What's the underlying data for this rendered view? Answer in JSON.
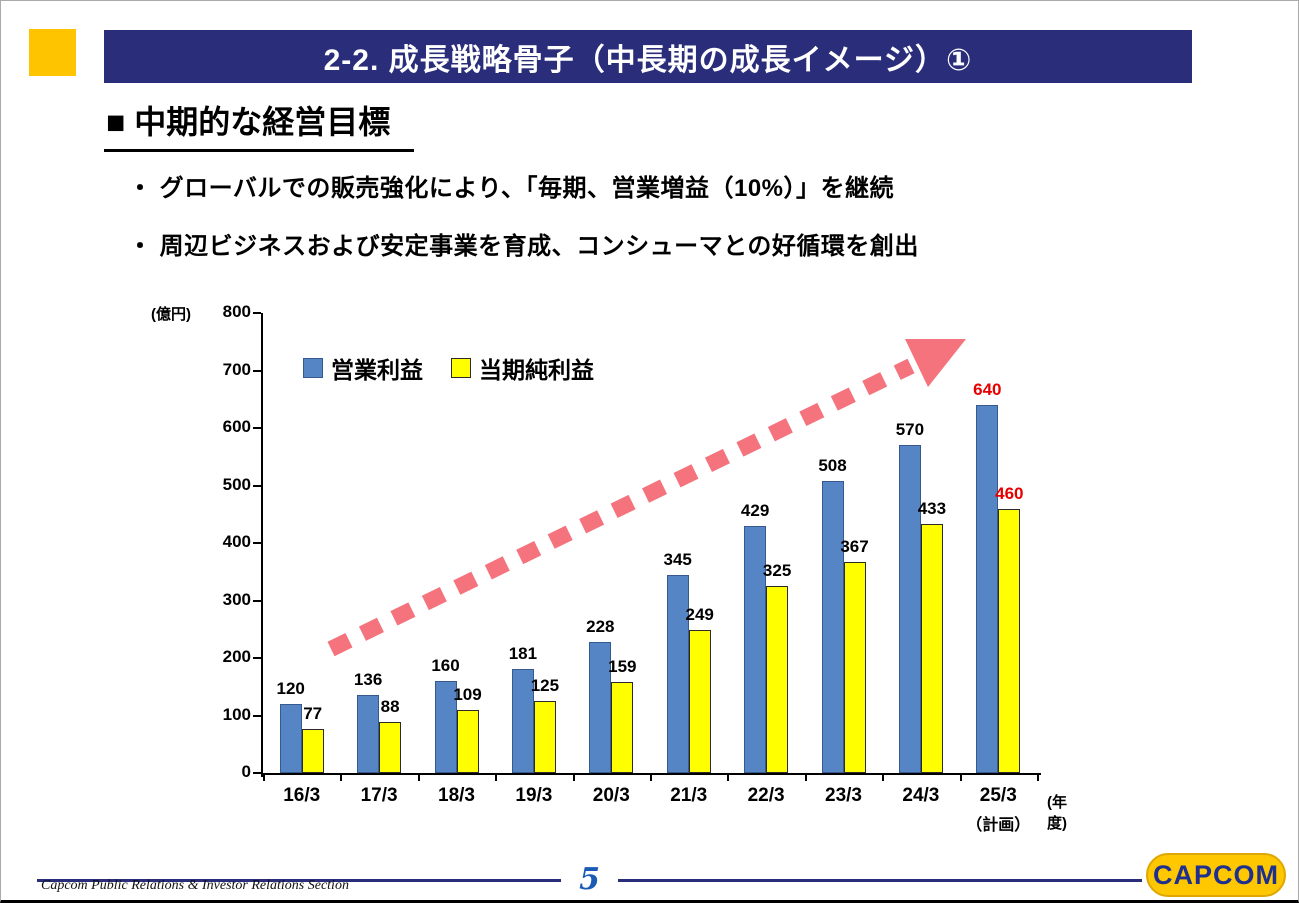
{
  "slide": {
    "banner_title": "2-2. 成長戦略骨子（中長期の成長イメージ）①",
    "heading": "■ 中期的な経営目標",
    "bullets": [
      "・ グローバルでの販売強化により、「毎期、営業増益（10%）」を継続",
      "・ 周辺ビジネスおよび安定事業を育成、コンシューマとの好循環を創出"
    ]
  },
  "chart_data": {
    "type": "bar",
    "unit_label": "(億円)",
    "x_axis_label": "(年度)",
    "categories": [
      "16/3",
      "17/3",
      "18/3",
      "19/3",
      "20/3",
      "21/3",
      "22/3",
      "23/3",
      "24/3",
      "25/3"
    ],
    "last_category_note": "（計画）",
    "series": [
      {
        "name": "営業利益",
        "color": "#5585c4",
        "values": [
          120,
          136,
          160,
          181,
          228,
          345,
          429,
          508,
          570,
          640
        ]
      },
      {
        "name": "当期純利益",
        "color": "#ffff00",
        "values": [
          77,
          88,
          109,
          125,
          159,
          249,
          325,
          367,
          433,
          460
        ]
      }
    ],
    "ylim": [
      0,
      800
    ],
    "ytick_step": 100,
    "legend_position": "top-left",
    "grid": false,
    "highlight_last_color": "#e60000",
    "trend_arrow_color": "#f4737d"
  },
  "footer": {
    "left_text": "Capcom Public Relations & Investor Relations Section",
    "page_number": "5",
    "logo_text": "CAPCOM"
  }
}
